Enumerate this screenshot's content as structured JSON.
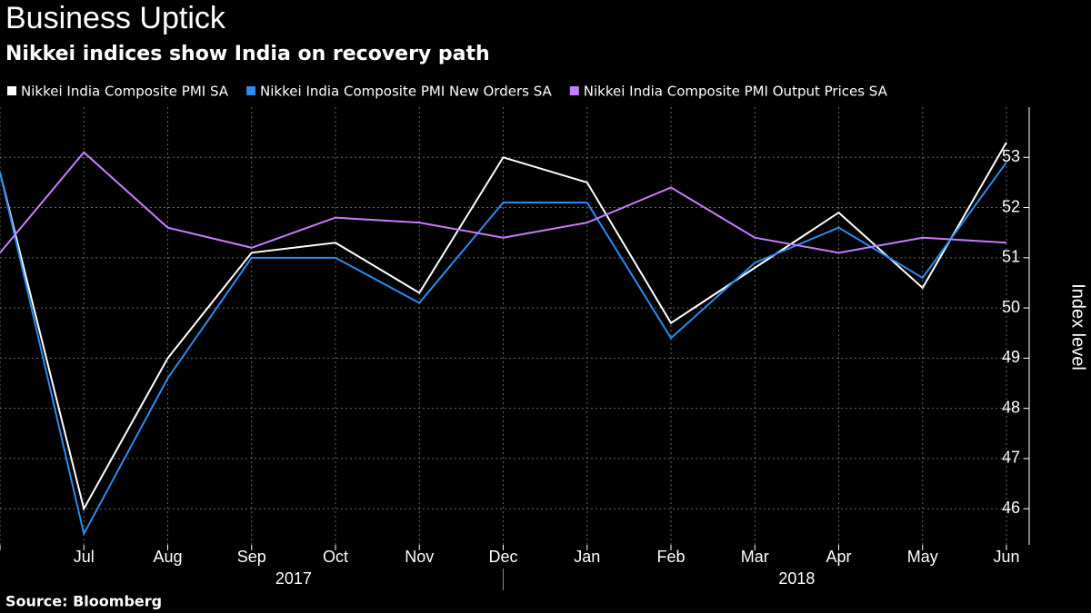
{
  "chart_data": {
    "type": "line",
    "title": "Business Uptick",
    "subtitle": "Nikkei indices show India on recovery path",
    "source": "Source: Bloomberg",
    "y_label": "Index level",
    "categories": [
      null,
      "Jul",
      "Aug",
      "Sep",
      "Oct",
      "Nov",
      "Dec",
      "Jan",
      "Feb",
      "Mar",
      "Apr",
      "May",
      "Jun"
    ],
    "year_groups": [
      {
        "label": "2017",
        "from": 1,
        "to": 6
      },
      {
        "label": "2018",
        "from": 7,
        "to": 12
      }
    ],
    "series": [
      {
        "name": "Nikkei India Composite PMI SA",
        "color": "#ffffff",
        "values": [
          52.7,
          46.0,
          49.0,
          51.1,
          51.3,
          50.3,
          53.0,
          52.5,
          49.7,
          50.8,
          51.9,
          50.4,
          53.3
        ]
      },
      {
        "name": "Nikkei India Composite PMI New Orders SA",
        "color": "#2a8cf0",
        "values": [
          52.7,
          45.5,
          48.6,
          51.0,
          51.0,
          50.1,
          52.1,
          52.1,
          49.4,
          50.9,
          51.6,
          50.6,
          52.9
        ]
      },
      {
        "name": "Nikkei India Composite PMI Output Prices SA",
        "color": "#c77dff",
        "values": [
          51.1,
          53.1,
          51.6,
          51.2,
          51.8,
          51.7,
          51.4,
          51.7,
          52.4,
          51.4,
          51.1,
          51.4,
          51.3
        ]
      }
    ],
    "ylim": [
      45.28,
      54.0
    ],
    "yticks": [
      46,
      47,
      48,
      49,
      50,
      51,
      52,
      53
    ],
    "grid": true
  }
}
